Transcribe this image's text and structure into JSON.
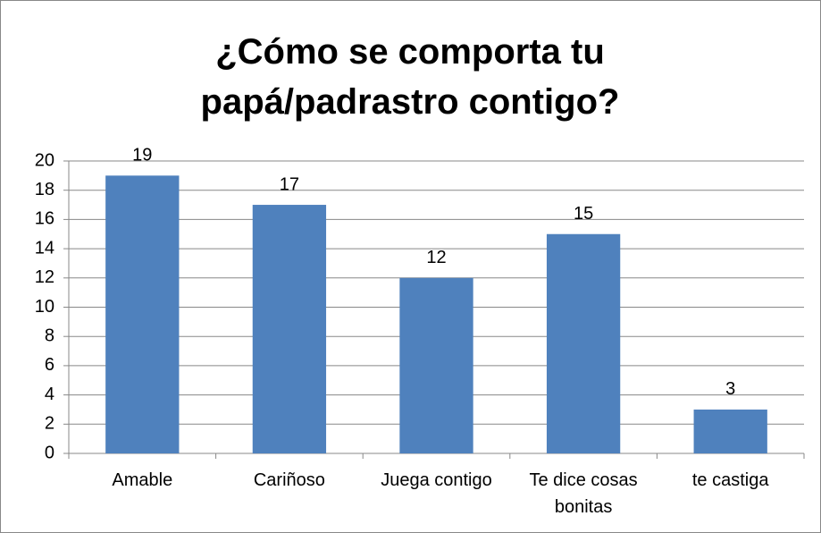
{
  "chart_data": {
    "type": "bar",
    "title": "¿Cómo se comporta tu papá/padrastro contigo?",
    "categories": [
      "Amable",
      "Cariñoso",
      "Juega contigo",
      "Te dice cosas bonitas",
      "te castiga"
    ],
    "values": [
      19,
      17,
      12,
      15,
      3
    ],
    "color": "#4f81bd",
    "ylim": [
      0,
      20
    ],
    "yticks": [
      0,
      2,
      4,
      6,
      8,
      10,
      12,
      14,
      16,
      18,
      20
    ],
    "grid": true
  }
}
